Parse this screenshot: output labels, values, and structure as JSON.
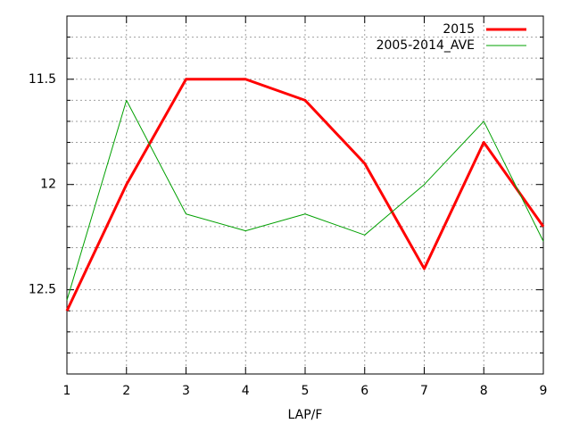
{
  "chart_data": {
    "type": "line",
    "xlabel": "LAP/F",
    "x": [
      1,
      2,
      3,
      4,
      5,
      6,
      7,
      8,
      9
    ],
    "series": [
      {
        "name": "2015",
        "color": "#ff0000",
        "width": 3,
        "values": [
          12.6,
          12.0,
          11.5,
          11.5,
          11.6,
          11.9,
          12.4,
          11.8,
          12.2
        ]
      },
      {
        "name": "2005-2014_AVE",
        "color": "#00a000",
        "width": 1,
        "values": [
          12.55,
          11.6,
          12.14,
          12.22,
          12.14,
          12.24,
          12.0,
          11.7,
          12.27
        ]
      }
    ],
    "xlim": [
      1,
      9
    ],
    "xticks": [
      1,
      2,
      3,
      4,
      5,
      6,
      7,
      8,
      9
    ],
    "ylim": [
      11.2,
      12.9
    ],
    "y_inverted": true,
    "yticks": [
      11.5,
      12,
      12.5
    ],
    "y_minor_ticks": [
      11.3,
      11.4,
      11.6,
      11.7,
      11.8,
      11.9,
      12.1,
      12.2,
      12.3,
      12.4,
      12.6,
      12.7,
      12.8
    ],
    "grid": true,
    "legend": "top-right"
  }
}
